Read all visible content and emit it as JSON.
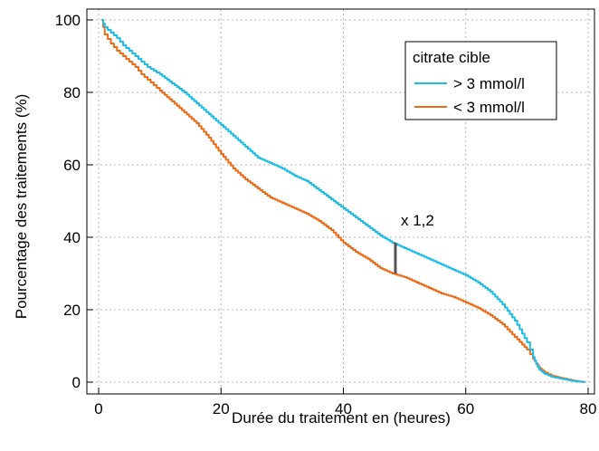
{
  "chart_data": {
    "type": "line",
    "xlabel": "Durée du traitement en (heures)",
    "ylabel": "Pourcentage des traitements (%)",
    "xlim": [
      0,
      80
    ],
    "ylim": [
      0,
      100
    ],
    "xticks": [
      0,
      20,
      40,
      60,
      80
    ],
    "yticks": [
      0,
      20,
      40,
      60,
      80,
      100
    ],
    "grid": true,
    "legend": {
      "title": "citrate cible",
      "position": "top-right"
    },
    "series": [
      {
        "name": "> 3 mmol/l",
        "color": "#1bbde8",
        "x": [
          0.5,
          1,
          2,
          3,
          4,
          5,
          6,
          7,
          8,
          9,
          10,
          12,
          14,
          16,
          18,
          20,
          22,
          24,
          26,
          28,
          30,
          32,
          34,
          36,
          38,
          40,
          42,
          44,
          46,
          48,
          50,
          52,
          54,
          56,
          58,
          60,
          62,
          64,
          66,
          68,
          70,
          71,
          71.5,
          72,
          72.5,
          73,
          74,
          76,
          78,
          79.5
        ],
        "y": [
          100,
          98,
          96.5,
          95,
          93,
          91.5,
          90,
          88.5,
          87,
          86,
          85,
          82.5,
          80,
          77,
          74,
          71,
          68,
          65,
          62,
          60.5,
          59,
          57,
          55.5,
          53,
          50.5,
          48,
          45.5,
          43,
          40.5,
          38.5,
          37,
          35.5,
          34,
          32.5,
          31,
          29.5,
          27.5,
          25,
          21.5,
          17,
          11,
          7,
          5,
          3.5,
          2.8,
          2.2,
          1.5,
          0.8,
          0.2,
          0
        ]
      },
      {
        "name": "< 3 mmol/l",
        "color": "#ee6a15",
        "x": [
          0.5,
          1,
          2,
          3,
          4,
          5,
          6,
          7,
          8,
          9,
          10,
          12,
          14,
          16,
          18,
          20,
          22,
          24,
          26,
          28,
          30,
          32,
          34,
          36,
          38,
          40,
          42,
          44,
          46,
          48,
          50,
          52,
          54,
          56,
          58,
          60,
          62,
          64,
          66,
          68,
          70,
          71,
          71.5,
          72,
          72.5,
          73,
          74,
          76,
          78,
          79.5
        ],
        "y": [
          100,
          96,
          93.5,
          91.5,
          90,
          88.5,
          87,
          85,
          83.5,
          82,
          80.5,
          77.5,
          74.5,
          71.5,
          67.5,
          63,
          59,
          56,
          53.5,
          51,
          49.5,
          48,
          46.5,
          44.5,
          42,
          38.5,
          36,
          34,
          31.5,
          30,
          29,
          27.5,
          26,
          24.5,
          23.5,
          22,
          20.5,
          18.5,
          16,
          12.5,
          9,
          6.5,
          5.2,
          4,
          3.3,
          2.6,
          1.8,
          1,
          0.3,
          0
        ]
      }
    ],
    "annotation": {
      "text": "x 1,2",
      "x": 48.5,
      "y_top": 38.5,
      "y_bottom": 30
    }
  }
}
